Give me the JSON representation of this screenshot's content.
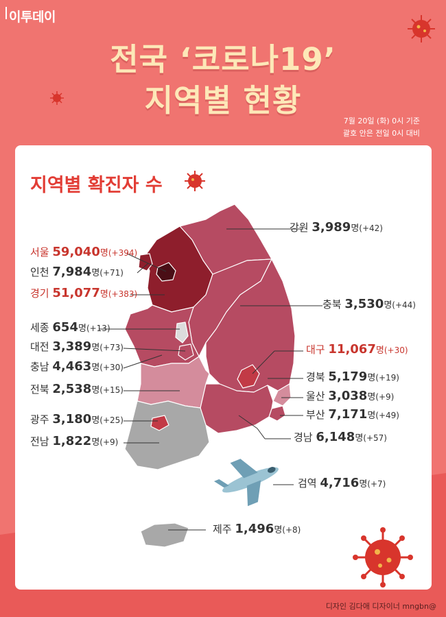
{
  "logo": "이투데이",
  "title_line1": "전국 ‘코로나19’",
  "title_line2": "지역별 현황",
  "basis_line1": "7월 20일 (화) 0시 기준",
  "basis_line2": "괄호 안은 전일 0시 대비",
  "subtitle": "지역별 확진자 수",
  "unit": "명",
  "regions": [
    {
      "key": "gangwon",
      "name": "강원",
      "count": "3,989",
      "change": "(+42)",
      "highlight": false
    },
    {
      "key": "seoul",
      "name": "서울",
      "count": "59,040",
      "change": "(+394)",
      "highlight": true
    },
    {
      "key": "incheon",
      "name": "인천",
      "count": "7,984",
      "change": "(+71)",
      "highlight": false
    },
    {
      "key": "gyeonggi",
      "name": "경기",
      "count": "51,077",
      "change": "(+383)",
      "highlight": true
    },
    {
      "key": "chungbuk",
      "name": "충북",
      "count": "3,530",
      "change": "(+44)",
      "highlight": false
    },
    {
      "key": "sejong",
      "name": "세종",
      "count": "654",
      "change": "(+13)",
      "highlight": false
    },
    {
      "key": "daejeon",
      "name": "대전",
      "count": "3,389",
      "change": "(+73)",
      "highlight": false
    },
    {
      "key": "daegu",
      "name": "대구",
      "count": "11,067",
      "change": "(+30)",
      "highlight": true
    },
    {
      "key": "chungnam",
      "name": "충남",
      "count": "4,463",
      "change": "(+30)",
      "highlight": false
    },
    {
      "key": "gyeongbuk",
      "name": "경북",
      "count": "5,179",
      "change": "(+19)",
      "highlight": false
    },
    {
      "key": "jeonbuk",
      "name": "전북",
      "count": "2,538",
      "change": "(+15)",
      "highlight": false
    },
    {
      "key": "ulsan",
      "name": "울산",
      "count": "3,038",
      "change": "(+9)",
      "highlight": false
    },
    {
      "key": "gwangju",
      "name": "광주",
      "count": "3,180",
      "change": "(+25)",
      "highlight": false
    },
    {
      "key": "busan",
      "name": "부산",
      "count": "7,171",
      "change": "(+49)",
      "highlight": false
    },
    {
      "key": "jeonnam",
      "name": "전남",
      "count": "1,822",
      "change": "(+9)",
      "highlight": false
    },
    {
      "key": "gyeongnam",
      "name": "경남",
      "count": "6,148",
      "change": "(+57)",
      "highlight": false
    },
    {
      "key": "quarantine",
      "name": "검역",
      "count": "4,716",
      "change": "(+7)",
      "highlight": false
    },
    {
      "key": "jeju",
      "name": "제주",
      "count": "1,496",
      "change": "(+8)",
      "highlight": false
    }
  ],
  "colors": {
    "background": "#f07470",
    "title": "#fde8b8",
    "accent_red": "#e23d35",
    "high": "#8e1e2c",
    "mid": "#b64b62",
    "light": "#d48c9c",
    "low": "#a8a8a8"
  },
  "credit": "디자인 김다애 디자이너 mngbn@"
}
